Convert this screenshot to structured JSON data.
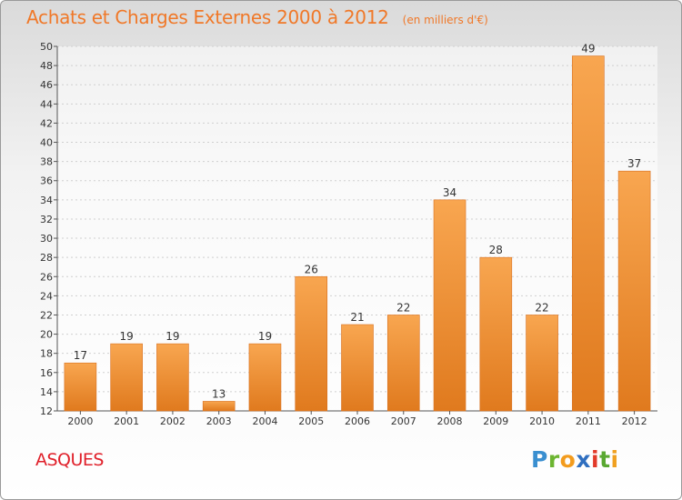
{
  "title": "Achats et Charges Externes 2000 à 2012",
  "unit_note": "(en milliers d'€)",
  "commune": "ASQUES",
  "logo": {
    "letters": [
      {
        "ch": "P",
        "color": "#3a8fd0"
      },
      {
        "ch": "r",
        "color": "#6cb531"
      },
      {
        "ch": "o",
        "color": "#f39c1e"
      },
      {
        "ch": "x",
        "color": "#2f6fc0"
      },
      {
        "ch": "i",
        "color": "#e23a2a"
      },
      {
        "ch": "t",
        "color": "#5aa832"
      },
      {
        "ch": "i",
        "color": "#f0a020"
      }
    ]
  },
  "colors": {
    "bar_light": "#f8a650",
    "bar_dark": "#e07a1e",
    "title": "#f07828",
    "commune": "#e0202a"
  },
  "chart_data": {
    "type": "bar",
    "categories": [
      "2000",
      "2001",
      "2002",
      "2003",
      "2004",
      "2005",
      "2006",
      "2007",
      "2008",
      "2009",
      "2010",
      "2011",
      "2012"
    ],
    "values": [
      17,
      19,
      19,
      13,
      19,
      26,
      21,
      22,
      34,
      28,
      22,
      49,
      37
    ],
    "ylim": [
      12,
      50
    ],
    "yticks": [
      12,
      14,
      16,
      18,
      20,
      22,
      24,
      26,
      28,
      30,
      32,
      34,
      36,
      38,
      40,
      42,
      44,
      46,
      48,
      50
    ],
    "grid": true,
    "title": "Achats et Charges Externes 2000 à 2012"
  }
}
